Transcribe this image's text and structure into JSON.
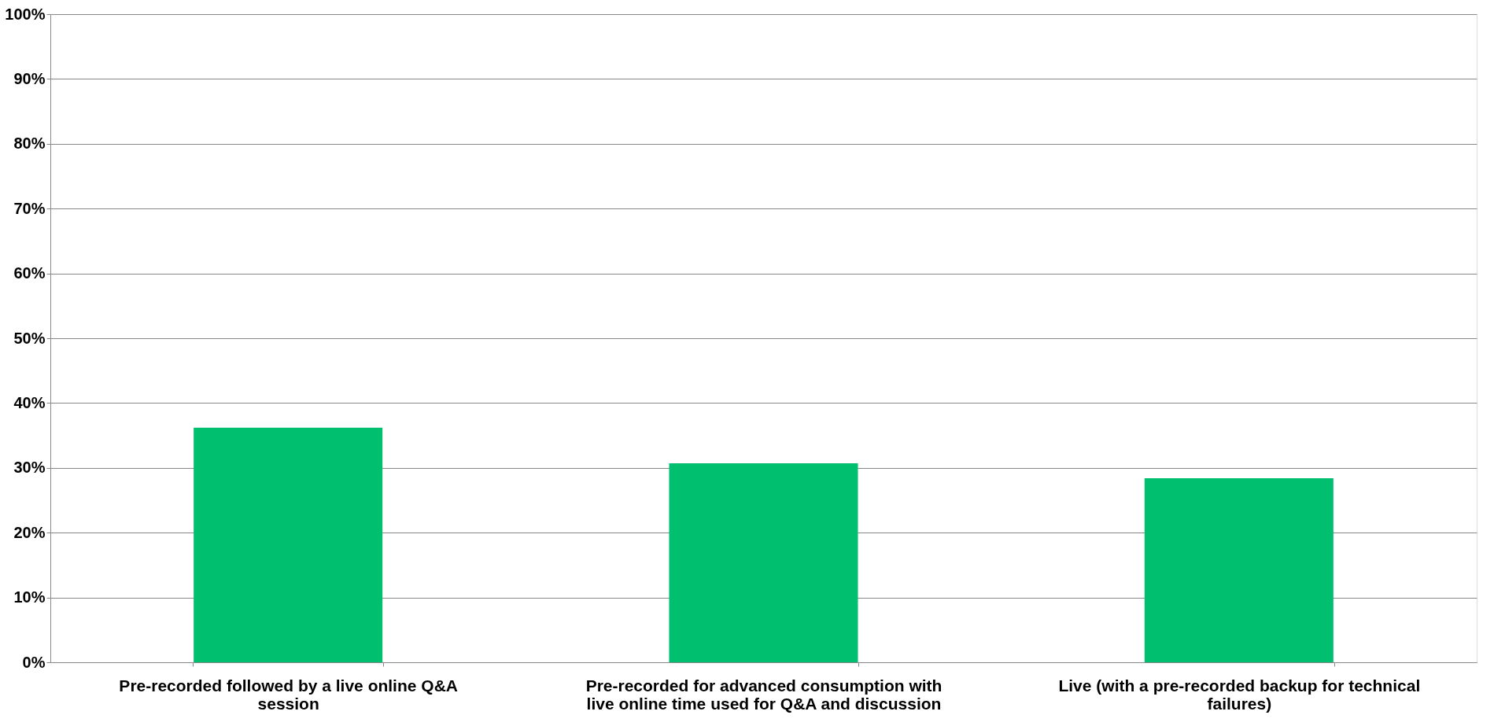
{
  "chart_data": {
    "type": "bar",
    "categories": [
      "Pre-recorded followed by a live online Q&A session",
      "Pre-recorded for advanced consumption with live online time used for Q&A and discussion",
      "Live (with a pre-recorded backup for technical failures)"
    ],
    "values": [
      36.2,
      30.7,
      28.4
    ],
    "color": "#00bf6f",
    "ylim": [
      0,
      100
    ],
    "yticks": [
      {
        "value": 0,
        "label": "0%"
      },
      {
        "value": 10,
        "label": "10%"
      },
      {
        "value": 20,
        "label": "20%"
      },
      {
        "value": 30,
        "label": "30%"
      },
      {
        "value": 40,
        "label": "40%"
      },
      {
        "value": 50,
        "label": "50%"
      },
      {
        "value": 60,
        "label": "60%"
      },
      {
        "value": 70,
        "label": "70%"
      },
      {
        "value": 80,
        "label": "80%"
      },
      {
        "value": 90,
        "label": "90%"
      },
      {
        "value": 100,
        "label": "100%"
      }
    ],
    "grid": "y"
  }
}
